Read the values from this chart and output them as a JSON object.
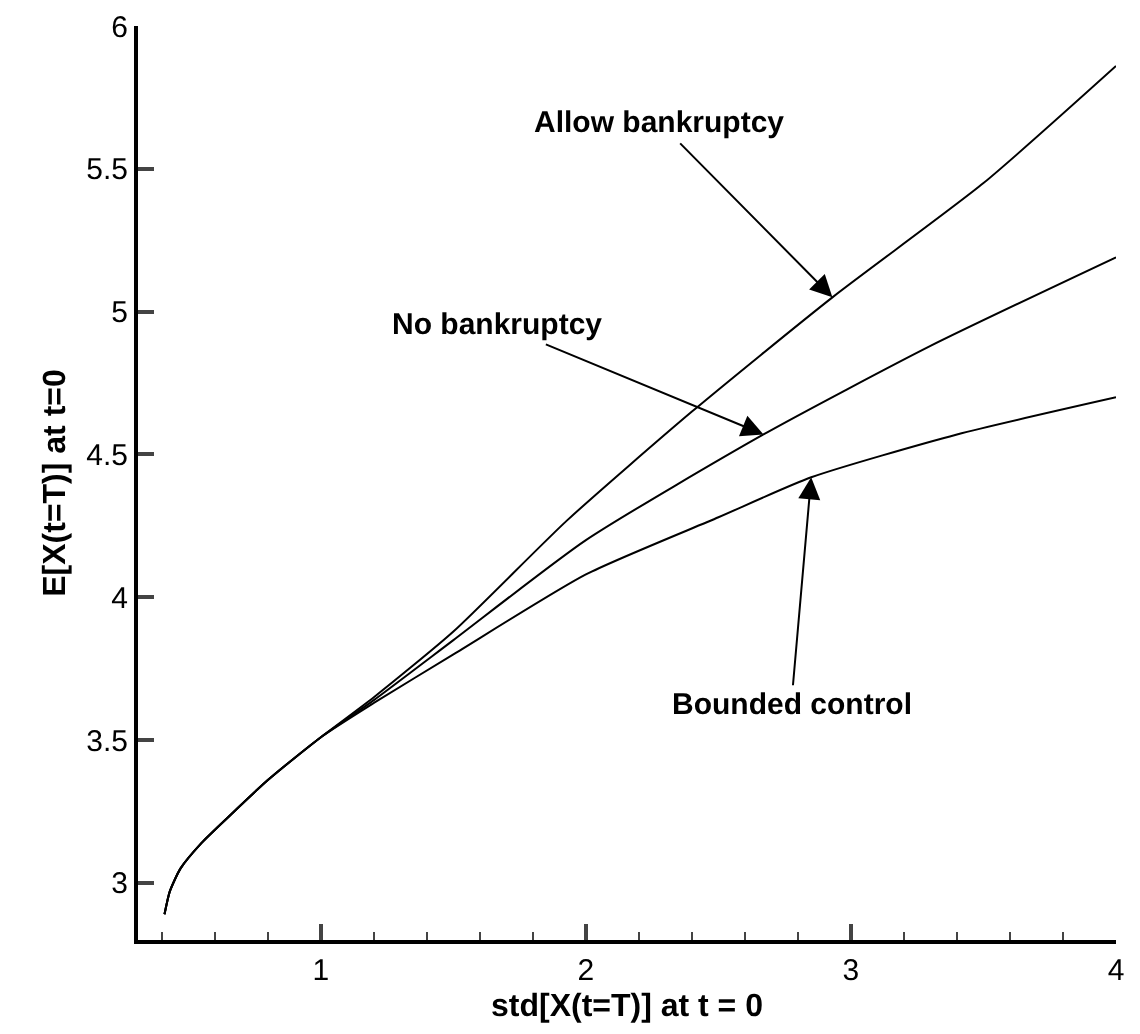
{
  "chart_data": {
    "type": "line",
    "xlabel": "std[X(t=T)] at t = 0",
    "ylabel": "E[X(t=T)] at t=0",
    "xlim": [
      0.31,
      4
    ],
    "ylim": [
      2.8,
      6
    ],
    "xticks": [
      1,
      2,
      3,
      4
    ],
    "yticks": [
      3,
      3.5,
      4,
      4.5,
      5,
      5.5,
      6
    ],
    "grid": false,
    "marker": "none",
    "line_style": "solid",
    "series": [
      {
        "color": "#000000",
        "x": [
          0.41,
          0.43,
          0.47,
          0.55,
          0.65,
          0.8,
          1.0,
          1.2,
          1.5,
          1.93,
          2.4,
          2.93,
          3.5,
          4
        ],
        "values": [
          2.89,
          2.97,
          3.05,
          3.14,
          3.23,
          3.36,
          3.51,
          3.65,
          3.88,
          4.27,
          4.65,
          5.05,
          5.45,
          5.86
        ]
      },
      {
        "color": "#000000",
        "x": [
          0.41,
          0.43,
          0.47,
          0.55,
          0.65,
          0.8,
          1.0,
          1.2,
          1.5,
          2,
          2.67,
          3.3,
          4
        ],
        "values": [
          2.89,
          2.97,
          3.05,
          3.14,
          3.23,
          3.36,
          3.51,
          3.64,
          3.85,
          4.2,
          4.57,
          4.88,
          5.19
        ]
      },
      {
        "color": "#000000",
        "x": [
          0.41,
          0.43,
          0.47,
          0.55,
          0.65,
          0.8,
          1.0,
          1.2,
          1.5,
          2,
          2.5,
          2.85,
          3.4,
          4
        ],
        "values": [
          2.89,
          2.97,
          3.05,
          3.14,
          3.23,
          3.36,
          3.51,
          3.63,
          3.8,
          4.08,
          4.28,
          4.42,
          4.57,
          4.7
        ]
      }
    ],
    "annotations": [
      {
        "text": "Allow bankruptcy",
        "x": 2.93,
        "y": 5.05
      },
      {
        "text": "No bankruptcy",
        "x": 2.67,
        "y": 4.57
      },
      {
        "text": "Bounded control",
        "x": 2.85,
        "y": 4.42
      }
    ]
  }
}
